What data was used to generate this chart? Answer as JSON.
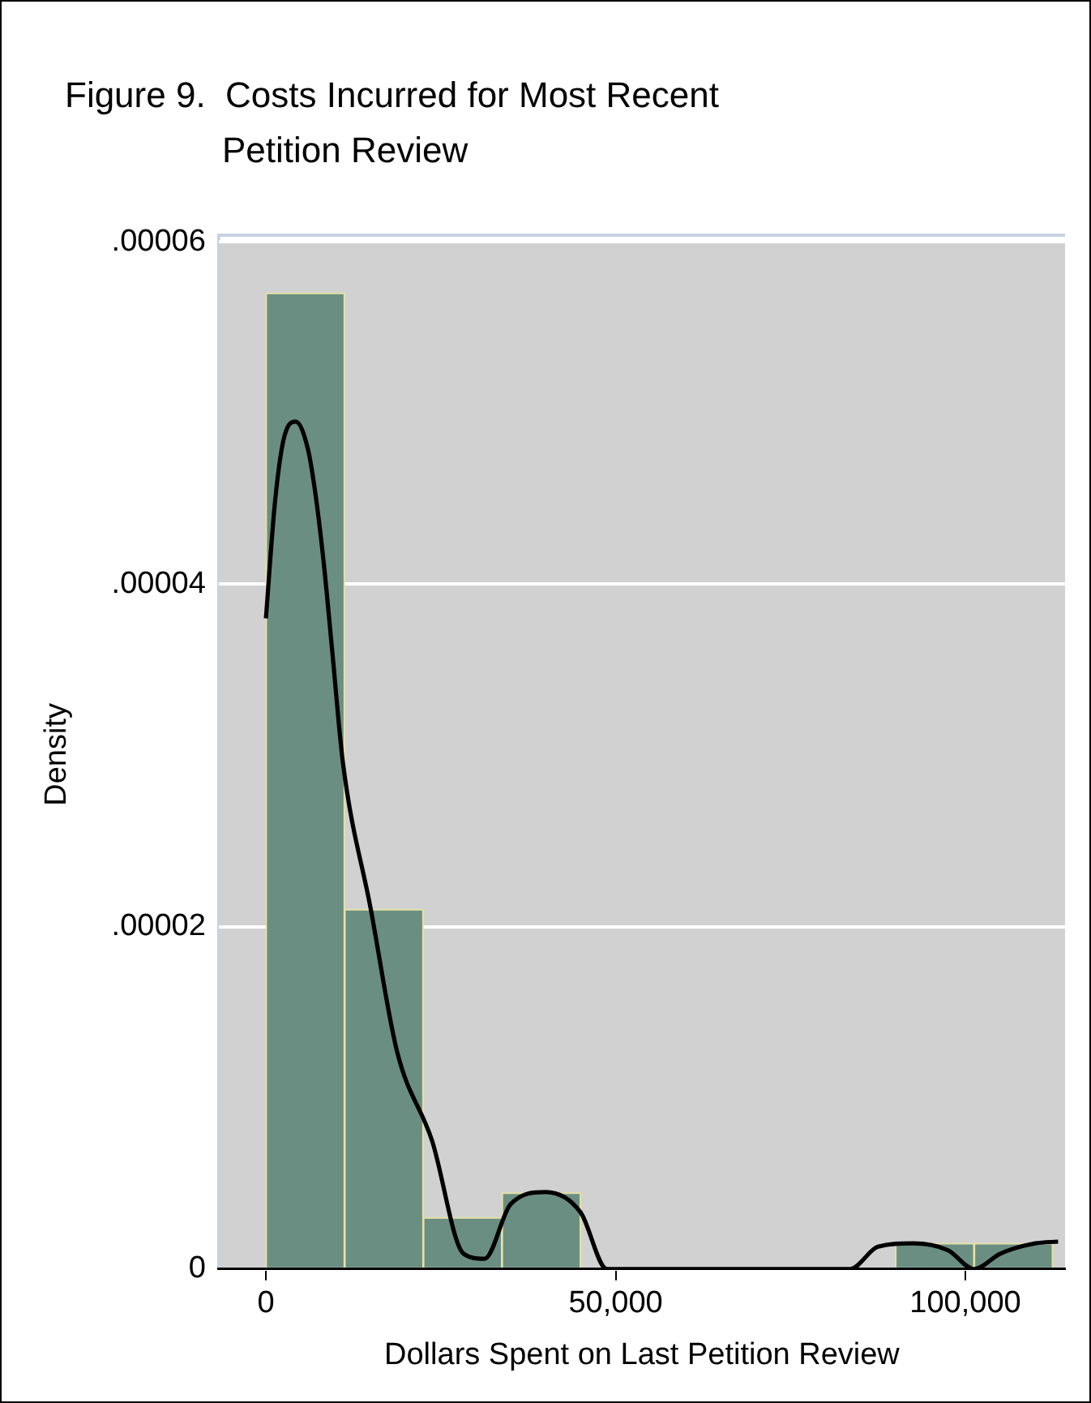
{
  "chart_data": {
    "type": "histogram",
    "title": "Figure 9.  Costs Incurred for Most Recent Petition Review",
    "xlabel": "Dollars Spent on Last Petition Review",
    "ylabel": "Density",
    "series": [
      {
        "bins": [
          0,
          11250,
          22500,
          33750,
          45000,
          56250,
          67500,
          78750,
          90000,
          101250,
          112500
        ],
        "values": [
          5.7e-05,
          2.1e-05,
          3e-06,
          4.45e-06,
          0,
          0,
          0,
          0,
          1.5e-06,
          1.5e-06
        ],
        "color": "#6b8e82"
      },
      {
        "type": "line",
        "x": [
          0,
          1250,
          2500,
          4250,
          6000,
          7000,
          8250,
          9500,
          11000,
          15000,
          18750,
          23750,
          28250,
          31250,
          35000,
          40000,
          45000,
          48750,
          60000,
          70000,
          83500,
          87500,
          92500,
          97500,
          101250,
          105000,
          110000,
          113250
        ],
        "values": [
          3.8e-05,
          4.46e-05,
          4.84e-05,
          4.95e-05,
          4.79e-05,
          4.55e-05,
          4.13e-05,
          3.6e-05,
          2.96e-05,
          2.1e-05,
          1.27e-05,
          7.5e-06,
          9e-07,
          6e-07,
          3.8e-06,
          4.5e-06,
          3.3e-06,
          0,
          0,
          0,
          0,
          1.3e-06,
          1.5e-06,
          1.1e-06,
          0,
          9e-07,
          1.5e-06,
          1.6e-06
        ],
        "color": "#000000"
      }
    ],
    "xlim": [
      -6750,
      114250
    ],
    "ylim": [
      0,
      6.01e-05
    ],
    "xticks": [
      {
        "value": 0,
        "label": "0"
      },
      {
        "value": 50000,
        "label": "50,000"
      },
      {
        "value": 100000,
        "label": "100,000"
      }
    ],
    "yticks": [
      0,
      {
        "value": 2e-05,
        "label": ".00002"
      },
      {
        "value": 4e-05,
        "label": ".00004"
      },
      {
        "value": 6e-05,
        "label": ".00006"
      }
    ],
    "grid": "y",
    "legend": false,
    "line_style": "solid",
    "marker": "none"
  }
}
